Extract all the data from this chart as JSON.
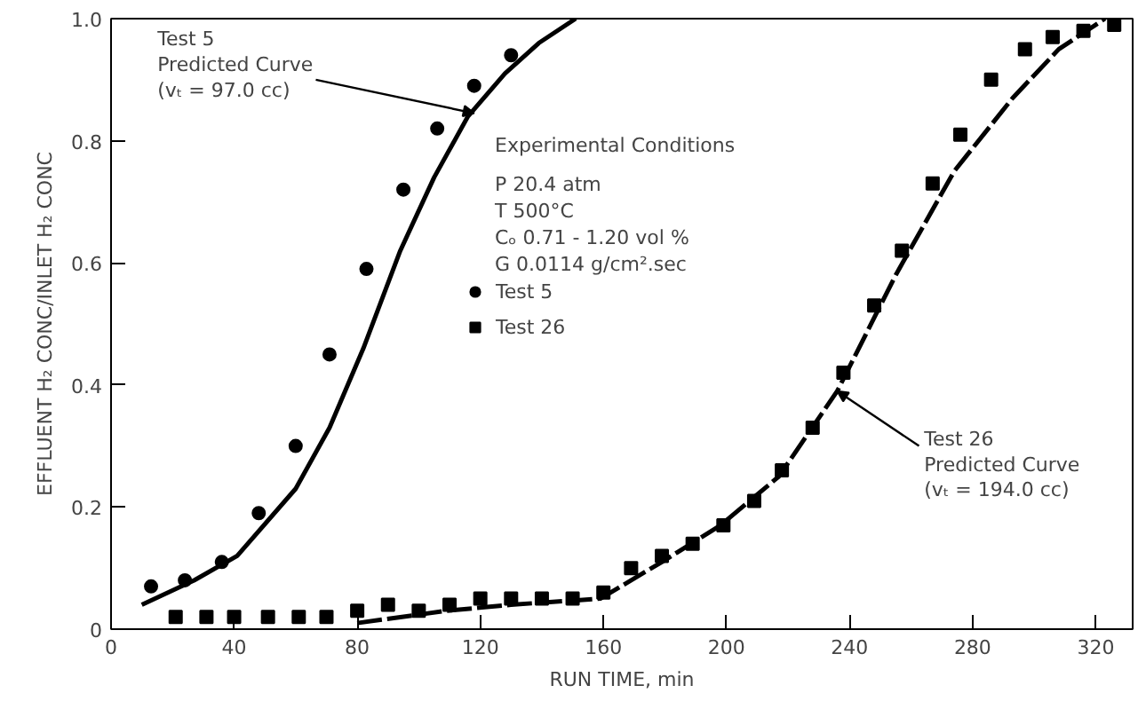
{
  "chart_data": {
    "type": "scatter",
    "xlabel": "RUN TIME, min",
    "ylabel": "EFFLUENT H₂ CONC/INLET H₂ CONC",
    "xlim": [
      0,
      332
    ],
    "ylim": [
      0,
      1.0
    ],
    "xticks": [
      0,
      40,
      80,
      120,
      160,
      200,
      240,
      280,
      320
    ],
    "yticks": [
      0,
      {
        "value": 0.2,
        "label": "0.2"
      },
      {
        "value": 0.4,
        "label": "0.4"
      },
      {
        "value": 0.6,
        "label": "0.6"
      },
      {
        "value": 0.8,
        "label": "0.8"
      },
      {
        "value": 1.0,
        "label": "1.0"
      }
    ],
    "grid": false,
    "legend": "top",
    "series": [
      {
        "name": "Test 5",
        "marker": "circle",
        "color": "#000000",
        "x": [
          13,
          24,
          36,
          48,
          60,
          71,
          83,
          95,
          106,
          118,
          130
        ],
        "values": [
          0.07,
          0.08,
          0.11,
          0.19,
          0.3,
          0.45,
          0.59,
          0.72,
          0.82,
          0.89,
          0.94
        ]
      },
      {
        "name": "Test 26",
        "marker": "square",
        "color": "#000000",
        "x": [
          21,
          31,
          40,
          51,
          61,
          70,
          80,
          90,
          100,
          110,
          120,
          130,
          140,
          150,
          160,
          169,
          179,
          189,
          199,
          209,
          218,
          228,
          238,
          248,
          257,
          267,
          276,
          286,
          297,
          306,
          316,
          326
        ],
        "values": [
          0.02,
          0.02,
          0.02,
          0.02,
          0.02,
          0.02,
          0.03,
          0.04,
          0.03,
          0.04,
          0.05,
          0.05,
          0.05,
          0.05,
          0.06,
          0.1,
          0.12,
          0.14,
          0.17,
          0.21,
          0.26,
          0.33,
          0.42,
          0.53,
          0.62,
          0.73,
          0.81,
          0.9,
          0.95,
          0.97,
          0.98,
          0.99
        ]
      },
      {
        "type": "line",
        "marker": "none",
        "line_style": "solid",
        "color": "#000000",
        "x": [
          10,
          27,
          41,
          60,
          71,
          82,
          94,
          105,
          116,
          128,
          139,
          151
        ],
        "values": [
          0.04,
          0.08,
          0.12,
          0.23,
          0.33,
          0.46,
          0.62,
          0.74,
          0.84,
          0.91,
          0.96,
          1.0
        ]
      },
      {
        "type": "line",
        "marker": "none",
        "line_style": "dashed",
        "color": "#000000",
        "x": [
          80,
          109,
          130,
          159,
          179,
          198,
          217,
          236,
          255,
          274,
          293,
          308,
          323
        ],
        "values": [
          0.01,
          0.03,
          0.04,
          0.05,
          0.11,
          0.17,
          0.25,
          0.39,
          0.58,
          0.75,
          0.87,
          0.95,
          1.0
        ]
      }
    ],
    "annotations": [
      {
        "text": "Test 5\nPredicted Curve\n(vₜ = 97.0 cc)",
        "x": 118,
        "y": 0.845
      },
      {
        "text": "Test 26\nPredicted Curve\n(vₜ = 194.0 cc)",
        "x": 236,
        "y": 0.39
      },
      "Experimental Conditions",
      "P    20.4 atm",
      "T    500°C",
      "Cₒ   0.71 - 1.20 vol %",
      "G    0.0114 g/cm².sec"
    ]
  }
}
